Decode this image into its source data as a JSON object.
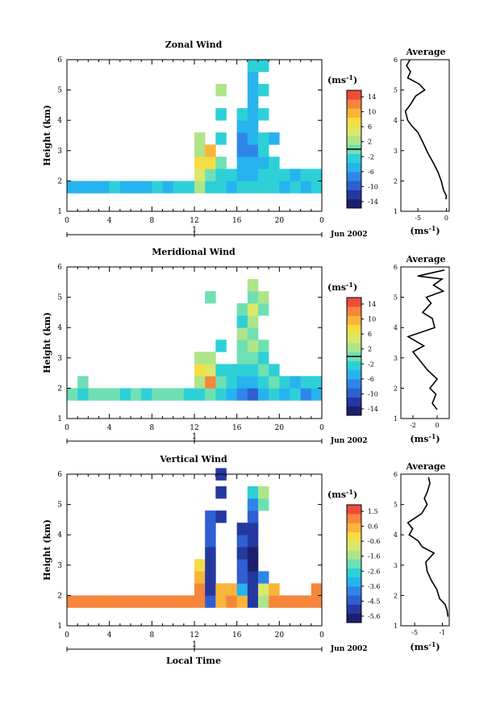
{
  "figure": {
    "colormap": [
      "#1c1f6e",
      "#25389f",
      "#2f5fd0",
      "#2f86e8",
      "#27b3ee",
      "#2ed0d8",
      "#6fe0b3",
      "#aee58a",
      "#dbe86a",
      "#f5dd45",
      "#f9b43a",
      "#f5863a",
      "#ec4d3a"
    ],
    "panels": [
      {
        "title": "Zonal Wind",
        "ylabel": "Height (km)",
        "yticks": [
          "1",
          "2",
          "3",
          "4",
          "5",
          "6"
        ],
        "xticks": [
          "0",
          "4",
          "8",
          "12",
          "16",
          "20",
          "0"
        ],
        "day_label": "1",
        "date_label": "Jun 2002",
        "xlabel": "",
        "colorbar": {
          "unit": "(ms",
          "sup": "-1",
          "close": ")",
          "ticks": [
            "14",
            "10",
            "6",
            "2",
            "-2",
            "-6",
            "-10",
            "-14"
          ]
        },
        "profile": {
          "title": "Average",
          "xticks": [
            "-5",
            "0"
          ],
          "unit": "(ms",
          "sup": "-1",
          "close": ")"
        }
      },
      {
        "title": "Meridional Wind",
        "ylabel": "Height (km)",
        "yticks": [
          "1",
          "2",
          "3",
          "4",
          "5",
          "6"
        ],
        "xticks": [
          "0",
          "4",
          "8",
          "12",
          "16",
          "20",
          "0"
        ],
        "day_label": "1",
        "date_label": "Jun 2002",
        "xlabel": "",
        "colorbar": {
          "unit": "(ms",
          "sup": "-1",
          "close": ")",
          "ticks": [
            "14",
            "10",
            "6",
            "2",
            "-2",
            "-6",
            "-10",
            "-14"
          ]
        },
        "profile": {
          "title": "Average",
          "xticks": [
            "-2",
            "0"
          ],
          "unit": "(ms",
          "sup": "-1",
          "close": ")"
        }
      },
      {
        "title": "Vertical Wind",
        "ylabel": "Height (km)",
        "yticks": [
          "1",
          "2",
          "3",
          "4",
          "5",
          "6"
        ],
        "xticks": [
          "0",
          "4",
          "8",
          "12",
          "16",
          "20",
          "0"
        ],
        "day_label": "1",
        "date_label": "Jun 2002",
        "xlabel": "Local Time",
        "colorbar": {
          "unit": "(ms",
          "sup": "-1",
          "close": ")",
          "ticks": [
            "1.5",
            "0.6",
            "-0.6",
            "-1.6",
            "-2.6",
            "-3.6",
            "-4.5",
            "-5.6"
          ]
        },
        "profile": {
          "title": "Average",
          "xticks": [
            "-5",
            "-1"
          ],
          "unit": "(ms",
          "sup": "-1",
          "close": ")"
        }
      }
    ]
  },
  "chart_data": [
    {
      "type": "heatmap",
      "title": "Zonal Wind",
      "ylabel": "Height (km)",
      "xlim": [
        0,
        24
      ],
      "ylim": [
        1,
        6
      ],
      "colorbar_range": [
        -14,
        14
      ],
      "cells": [
        [
          0,
          1.6,
          -4
        ],
        [
          1,
          1.6,
          -4
        ],
        [
          2,
          1.6,
          -5
        ],
        [
          3,
          1.6,
          -4
        ],
        [
          4,
          1.6,
          -3
        ],
        [
          5,
          1.6,
          -4
        ],
        [
          6,
          1.6,
          -4
        ],
        [
          7,
          1.6,
          -4
        ],
        [
          8,
          1.6,
          -3
        ],
        [
          9,
          1.6,
          -4
        ],
        [
          10,
          1.6,
          -2
        ],
        [
          11,
          1.6,
          -3
        ],
        [
          12,
          1.6,
          2
        ],
        [
          12,
          2.0,
          4
        ],
        [
          12,
          2.4,
          6
        ],
        [
          12,
          2.8,
          3
        ],
        [
          12,
          3.2,
          2
        ],
        [
          13,
          1.6,
          -2
        ],
        [
          13,
          2.0,
          0
        ],
        [
          13,
          2.4,
          6
        ],
        [
          13,
          2.8,
          8
        ],
        [
          14,
          1.6,
          -3
        ],
        [
          14,
          2.0,
          -2
        ],
        [
          14,
          2.4,
          0
        ],
        [
          14,
          3.2,
          -3
        ],
        [
          14,
          4.0,
          -2
        ],
        [
          14,
          4.8,
          2
        ],
        [
          15,
          1.6,
          -4
        ],
        [
          15,
          2.0,
          -3
        ],
        [
          16,
          1.6,
          -3
        ],
        [
          16,
          2.0,
          -5
        ],
        [
          16,
          2.4,
          -4
        ],
        [
          16,
          2.8,
          -6
        ],
        [
          16,
          3.2,
          -6
        ],
        [
          16,
          3.6,
          -4
        ],
        [
          16,
          4.0,
          -3
        ],
        [
          17,
          1.6,
          -3
        ],
        [
          17,
          2.0,
          -4
        ],
        [
          17,
          2.4,
          -5
        ],
        [
          17,
          2.8,
          -6
        ],
        [
          17,
          3.2,
          -5
        ],
        [
          17,
          3.6,
          -4
        ],
        [
          17,
          4.0,
          -4
        ],
        [
          17,
          4.4,
          -4
        ],
        [
          17,
          4.8,
          -4
        ],
        [
          17,
          5.2,
          -4
        ],
        [
          17,
          5.6,
          -3
        ],
        [
          18,
          1.6,
          -2
        ],
        [
          18,
          2.0,
          -3
        ],
        [
          18,
          2.4,
          -4
        ],
        [
          18,
          2.8,
          -3
        ],
        [
          18,
          3.2,
          -2
        ],
        [
          18,
          4.0,
          -3
        ],
        [
          18,
          4.8,
          -3
        ],
        [
          18,
          5.6,
          -3
        ],
        [
          19,
          1.6,
          -3
        ],
        [
          19,
          2.0,
          -2
        ],
        [
          19,
          2.4,
          -3
        ],
        [
          19,
          3.2,
          -5
        ],
        [
          20,
          1.6,
          -4
        ],
        [
          20,
          2.0,
          -3
        ],
        [
          21,
          1.6,
          -3
        ],
        [
          21,
          2.0,
          -4
        ],
        [
          22,
          1.6,
          -4
        ],
        [
          22,
          2.0,
          -3
        ],
        [
          23,
          1.6,
          -3
        ],
        [
          23,
          2.0,
          -2
        ]
      ]
    },
    {
      "type": "heatmap",
      "title": "Meridional Wind",
      "ylabel": "Height (km)",
      "xlim": [
        0,
        24
      ],
      "ylim": [
        1,
        6
      ],
      "colorbar_range": [
        -14,
        14
      ],
      "cells": [
        [
          0,
          1.6,
          0
        ],
        [
          1,
          1.6,
          -2
        ],
        [
          1,
          2.0,
          -1
        ],
        [
          2,
          1.6,
          -1
        ],
        [
          3,
          1.6,
          0
        ],
        [
          4,
          1.6,
          -1
        ],
        [
          5,
          1.6,
          -2
        ],
        [
          6,
          1.6,
          -1
        ],
        [
          7,
          1.6,
          -2
        ],
        [
          8,
          1.6,
          -1
        ],
        [
          9,
          1.6,
          0
        ],
        [
          10,
          1.6,
          -1
        ],
        [
          11,
          1.6,
          -2
        ],
        [
          12,
          1.6,
          -2
        ],
        [
          12,
          2.0,
          2
        ],
        [
          12,
          2.4,
          6
        ],
        [
          12,
          2.8,
          3
        ],
        [
          13,
          1.6,
          0
        ],
        [
          13,
          2.0,
          10
        ],
        [
          13,
          2.4,
          4
        ],
        [
          13,
          2.8,
          2
        ],
        [
          13,
          4.8,
          0
        ],
        [
          14,
          1.6,
          -2
        ],
        [
          14,
          2.0,
          -1
        ],
        [
          14,
          2.4,
          -3
        ],
        [
          14,
          3.2,
          -2
        ],
        [
          15,
          1.6,
          -4
        ],
        [
          15,
          2.0,
          -2
        ],
        [
          15,
          2.4,
          -2
        ],
        [
          16,
          1.6,
          -6
        ],
        [
          16,
          2.0,
          -4
        ],
        [
          16,
          2.4,
          -2
        ],
        [
          16,
          2.8,
          -1
        ],
        [
          16,
          3.2,
          0
        ],
        [
          16,
          3.6,
          2
        ],
        [
          16,
          4.0,
          -2
        ],
        [
          16,
          4.4,
          -1
        ],
        [
          17,
          1.6,
          -8
        ],
        [
          17,
          2.0,
          -4
        ],
        [
          17,
          2.4,
          -2
        ],
        [
          17,
          2.8,
          0
        ],
        [
          17,
          3.2,
          2
        ],
        [
          17,
          3.6,
          0
        ],
        [
          17,
          4.0,
          2
        ],
        [
          17,
          4.4,
          4
        ],
        [
          17,
          4.8,
          0
        ],
        [
          17,
          5.2,
          2
        ],
        [
          18,
          1.6,
          -4
        ],
        [
          18,
          2.0,
          -2
        ],
        [
          18,
          2.4,
          0
        ],
        [
          18,
          2.8,
          -2
        ],
        [
          18,
          3.2,
          -1
        ],
        [
          18,
          4.4,
          0
        ],
        [
          18,
          4.8,
          2
        ],
        [
          19,
          1.6,
          -2
        ],
        [
          19,
          2.0,
          -1
        ],
        [
          19,
          2.4,
          -2
        ],
        [
          20,
          1.6,
          -4
        ],
        [
          20,
          2.0,
          -3
        ],
        [
          21,
          1.6,
          -2
        ],
        [
          21,
          2.0,
          -4
        ],
        [
          22,
          1.6,
          -6
        ],
        [
          22,
          2.0,
          -3
        ],
        [
          23,
          1.6,
          -4
        ],
        [
          23,
          2.0,
          -2
        ]
      ]
    },
    {
      "type": "heatmap",
      "title": "Vertical Wind",
      "ylabel": "Height (km)",
      "xlabel": "Local Time",
      "xlim": [
        0,
        24
      ],
      "ylim": [
        1,
        6
      ],
      "colorbar_range": [
        -5.6,
        1.5
      ],
      "cells": [
        [
          0,
          1.6,
          0.6
        ],
        [
          1,
          1.6,
          0.6
        ],
        [
          2,
          1.6,
          0.6
        ],
        [
          3,
          1.6,
          0.6
        ],
        [
          4,
          1.6,
          0.5
        ],
        [
          5,
          1.6,
          0.6
        ],
        [
          6,
          1.6,
          0.6
        ],
        [
          7,
          1.6,
          0.6
        ],
        [
          8,
          1.6,
          0.6
        ],
        [
          9,
          1.6,
          0.6
        ],
        [
          10,
          1.6,
          0.5
        ],
        [
          11,
          1.6,
          0.6
        ],
        [
          12,
          1.6,
          0.6
        ],
        [
          12,
          2.0,
          0.5
        ],
        [
          12,
          2.4,
          0.4
        ],
        [
          12,
          2.8,
          -0.2
        ],
        [
          13,
          1.6,
          -4.5
        ],
        [
          13,
          2.0,
          -5.0
        ],
        [
          13,
          2.4,
          -5.0
        ],
        [
          13,
          2.8,
          -5.0
        ],
        [
          13,
          3.2,
          -4.8
        ],
        [
          13,
          3.6,
          -4.5
        ],
        [
          13,
          4.0,
          -4.5
        ],
        [
          13,
          4.4,
          -4.5
        ],
        [
          14,
          1.6,
          0.2
        ],
        [
          14,
          2.0,
          0.2
        ],
        [
          14,
          4.4,
          -4.8
        ],
        [
          14,
          5.2,
          -5.0
        ],
        [
          14,
          5.8,
          -5.0
        ],
        [
          15,
          1.6,
          0.5
        ],
        [
          15,
          2.0,
          0.4
        ],
        [
          16,
          1.6,
          0.0
        ],
        [
          16,
          2.0,
          -3.0
        ],
        [
          16,
          2.4,
          -4.0
        ],
        [
          16,
          2.8,
          -4.5
        ],
        [
          16,
          3.2,
          -4.6
        ],
        [
          16,
          3.6,
          -4.5
        ],
        [
          16,
          4.0,
          -4.8
        ],
        [
          17,
          1.6,
          -5.0
        ],
        [
          17,
          2.0,
          -5.0
        ],
        [
          17,
          2.4,
          -5.0
        ],
        [
          17,
          2.8,
          -5.2
        ],
        [
          17,
          3.2,
          -5.2
        ],
        [
          17,
          3.6,
          -5.0
        ],
        [
          17,
          4.0,
          -4.8
        ],
        [
          17,
          4.4,
          -4.5
        ],
        [
          17,
          4.8,
          -3.5
        ],
        [
          17,
          5.2,
          -2.5
        ],
        [
          18,
          1.6,
          -1.6
        ],
        [
          18,
          2.0,
          -1.0
        ],
        [
          18,
          2.4,
          -3.6
        ],
        [
          18,
          4.8,
          -2.0
        ],
        [
          18,
          5.2,
          -1.6
        ],
        [
          19,
          1.6,
          0.5
        ],
        [
          19,
          2.0,
          0.4
        ],
        [
          20,
          1.6,
          0.6
        ],
        [
          21,
          1.6,
          0.5
        ],
        [
          22,
          1.6,
          0.6
        ],
        [
          23,
          1.6,
          0.6
        ],
        [
          23,
          2.0,
          0.5
        ]
      ]
    },
    {
      "type": "line",
      "title": "Average",
      "xlabel": "(ms-1)",
      "xlim": [
        -8,
        0.5
      ],
      "ylim": [
        1,
        6
      ],
      "points": [
        [
          -0.1,
          1.4
        ],
        [
          0.0,
          1.5
        ],
        [
          -0.5,
          1.7
        ],
        [
          -0.9,
          2.0
        ],
        [
          -1.5,
          2.3
        ],
        [
          -2.3,
          2.6
        ],
        [
          -3.2,
          2.9
        ],
        [
          -4.2,
          3.3
        ],
        [
          -5.0,
          3.6
        ],
        [
          -6.0,
          3.8
        ],
        [
          -6.8,
          4.0
        ],
        [
          -7.2,
          4.3
        ],
        [
          -6.4,
          4.5
        ],
        [
          -5.4,
          4.8
        ],
        [
          -3.8,
          5.0
        ],
        [
          -4.8,
          5.2
        ],
        [
          -6.8,
          5.4
        ],
        [
          -6.3,
          5.6
        ],
        [
          -7.0,
          5.8
        ],
        [
          -6.4,
          6.0
        ]
      ]
    },
    {
      "type": "line",
      "title": "Average",
      "xlabel": "(ms-1)",
      "xlim": [
        -3,
        1
      ],
      "ylim": [
        1,
        6
      ],
      "points": [
        [
          0.0,
          1.3
        ],
        [
          -0.4,
          1.5
        ],
        [
          -0.1,
          1.8
        ],
        [
          -0.6,
          2.0
        ],
        [
          0.0,
          2.3
        ],
        [
          -0.8,
          2.6
        ],
        [
          -1.4,
          2.9
        ],
        [
          -2.0,
          3.2
        ],
        [
          -1.1,
          3.4
        ],
        [
          -2.4,
          3.7
        ],
        [
          -0.2,
          4.0
        ],
        [
          -0.4,
          4.3
        ],
        [
          -1.2,
          4.5
        ],
        [
          -0.5,
          4.8
        ],
        [
          -0.9,
          5.0
        ],
        [
          0.5,
          5.2
        ],
        [
          -0.3,
          5.4
        ],
        [
          0.4,
          5.6
        ],
        [
          -1.6,
          5.7
        ],
        [
          0.6,
          5.9
        ]
      ]
    },
    {
      "type": "line",
      "title": "Average",
      "xlabel": "(ms-1)",
      "xlim": [
        -7,
        0
      ],
      "ylim": [
        1,
        6
      ],
      "points": [
        [
          -0.2,
          1.3
        ],
        [
          -0.3,
          1.5
        ],
        [
          -0.6,
          1.7
        ],
        [
          -1.4,
          1.9
        ],
        [
          -1.8,
          2.2
        ],
        [
          -2.6,
          2.5
        ],
        [
          -3.2,
          2.8
        ],
        [
          -3.4,
          3.1
        ],
        [
          -2.2,
          3.4
        ],
        [
          -3.9,
          3.6
        ],
        [
          -4.5,
          3.8
        ],
        [
          -5.8,
          4.0
        ],
        [
          -5.3,
          4.2
        ],
        [
          -6.0,
          4.4
        ],
        [
          -4.0,
          4.7
        ],
        [
          -3.2,
          5.0
        ],
        [
          -3.6,
          5.2
        ],
        [
          -3.2,
          5.4
        ],
        [
          -2.8,
          5.7
        ],
        [
          -3.0,
          5.9
        ]
      ]
    }
  ]
}
